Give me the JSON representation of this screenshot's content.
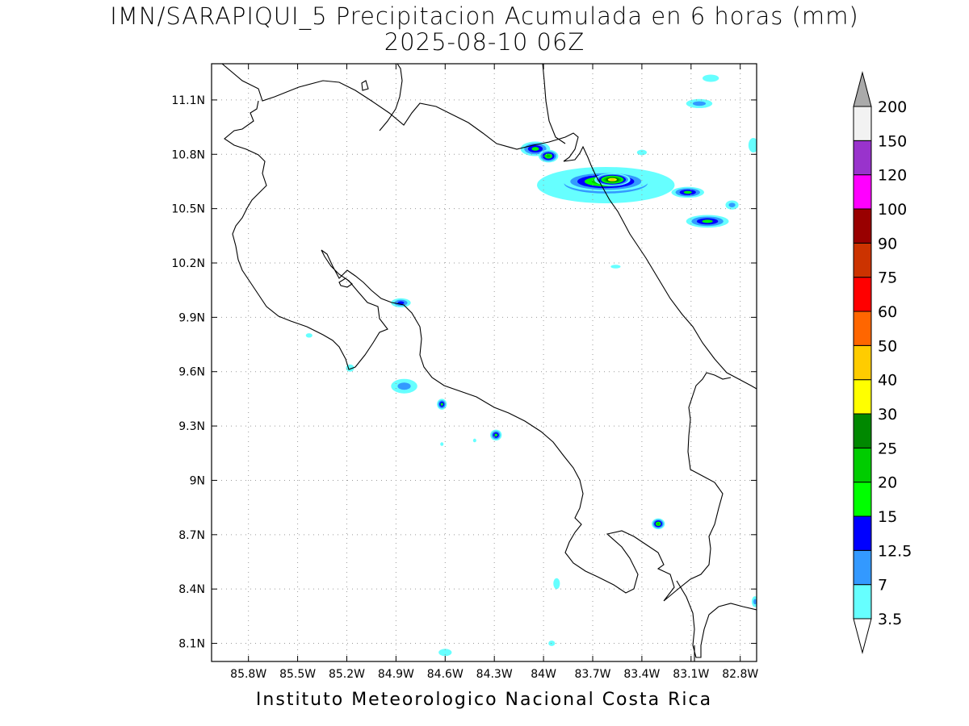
{
  "title": {
    "line1": "IMN/SARAPIQUI_5 Precipitacion Acumulada en 6 horas (mm)",
    "line2": "2025-08-10 06Z"
  },
  "footer": "Instituto Meteorologico Nacional Costa Rica",
  "map": {
    "lon_range": [
      -86.025,
      -82.7
    ],
    "lat_range": [
      8.0,
      11.3
    ],
    "lat_ticks": [
      "8.1N",
      "8.4N",
      "8.7N",
      "9N",
      "9.3N",
      "9.6N",
      "9.9N",
      "10.2N",
      "10.5N",
      "10.8N",
      "11.1N"
    ],
    "lat_values": [
      8.1,
      8.4,
      8.7,
      9.0,
      9.3,
      9.6,
      9.9,
      10.2,
      10.5,
      10.8,
      11.1
    ],
    "lon_ticks": [
      "85.8W",
      "85.5W",
      "85.2W",
      "84.9W",
      "84.6W",
      "84.3W",
      "84W",
      "83.7W",
      "83.4W",
      "83.1W",
      "82.8W"
    ],
    "lon_values": [
      -85.8,
      -85.5,
      -85.2,
      -84.9,
      -84.6,
      -84.3,
      -84.0,
      -83.7,
      -83.4,
      -83.1,
      -82.8
    ],
    "grid": true
  },
  "colorbar": {
    "labels": [
      "3.5",
      "7",
      "12.5",
      "15",
      "20",
      "25",
      "30",
      "40",
      "50",
      "60",
      "75",
      "90",
      "100",
      "120",
      "150",
      "200"
    ],
    "colors": [
      "#66ffff",
      "#3399ff",
      "#0000ff",
      "#00ff00",
      "#00cc00",
      "#008800",
      "#ffff00",
      "#ffcc00",
      "#ff6600",
      "#ff0000",
      "#cc3300",
      "#990000",
      "#ff00ff",
      "#9933cc",
      "#f2f2f2",
      "#aaaaaa"
    ],
    "low_end_color": "#ffffff",
    "high_end_color": "#aaaaaa"
  },
  "precip_cells": [
    {
      "lon": -84.05,
      "lat": 10.83,
      "rx": 0.09,
      "ry": 0.04,
      "level": 3
    },
    {
      "lon": -83.97,
      "lat": 10.79,
      "rx": 0.06,
      "ry": 0.035,
      "level": 4
    },
    {
      "lon": -83.62,
      "lat": 10.63,
      "rx": 0.42,
      "ry": 0.1,
      "level": 1
    },
    {
      "lon": -83.62,
      "lat": 10.64,
      "rx": 0.34,
      "ry": 0.075,
      "level": 3
    },
    {
      "lon": -83.62,
      "lat": 10.65,
      "rx": 0.26,
      "ry": 0.055,
      "level": 5
    },
    {
      "lon": -83.58,
      "lat": 10.66,
      "rx": 0.11,
      "ry": 0.035,
      "level": 7
    },
    {
      "lon": -83.12,
      "lat": 10.59,
      "rx": 0.1,
      "ry": 0.03,
      "level": 3
    },
    {
      "lon": -83.0,
      "lat": 10.43,
      "rx": 0.13,
      "ry": 0.035,
      "level": 3
    },
    {
      "lon": -82.85,
      "lat": 10.52,
      "rx": 0.04,
      "ry": 0.025,
      "level": 1
    },
    {
      "lon": -83.4,
      "lat": 10.81,
      "rx": 0.03,
      "ry": 0.015,
      "level": 0
    },
    {
      "lon": -83.05,
      "lat": 11.08,
      "rx": 0.08,
      "ry": 0.025,
      "level": 1
    },
    {
      "lon": -82.98,
      "lat": 11.22,
      "rx": 0.05,
      "ry": 0.02,
      "level": 0
    },
    {
      "lon": -84.87,
      "lat": 9.98,
      "rx": 0.06,
      "ry": 0.025,
      "level": 2
    },
    {
      "lon": -84.85,
      "lat": 9.52,
      "rx": 0.08,
      "ry": 0.04,
      "level": 1
    },
    {
      "lon": -84.62,
      "lat": 9.42,
      "rx": 0.03,
      "ry": 0.03,
      "level": 3
    },
    {
      "lon": -84.29,
      "lat": 9.25,
      "rx": 0.035,
      "ry": 0.03,
      "level": 3
    },
    {
      "lon": -83.3,
      "lat": 8.76,
      "rx": 0.04,
      "ry": 0.03,
      "level": 4
    },
    {
      "lon": -84.6,
      "lat": 8.05,
      "rx": 0.04,
      "ry": 0.02,
      "level": 0
    },
    {
      "lon": -83.95,
      "lat": 8.1,
      "rx": 0.02,
      "ry": 0.015,
      "level": 0
    },
    {
      "lon": -85.18,
      "lat": 9.62,
      "rx": 0.025,
      "ry": 0.02,
      "level": 0
    },
    {
      "lon": -85.43,
      "lat": 9.8,
      "rx": 0.02,
      "ry": 0.012,
      "level": 0
    },
    {
      "lon": -82.72,
      "lat": 10.85,
      "rx": 0.03,
      "ry": 0.04,
      "level": 0
    },
    {
      "lon": -82.71,
      "lat": 8.33,
      "rx": 0.02,
      "ry": 0.03,
      "level": 1
    },
    {
      "lon": -83.56,
      "lat": 10.18,
      "rx": 0.03,
      "ry": 0.01,
      "level": 0
    },
    {
      "lon": -84.62,
      "lat": 9.2,
      "rx": 0.01,
      "ry": 0.01,
      "level": 0
    },
    {
      "lon": -84.42,
      "lat": 9.22,
      "rx": 0.01,
      "ry": 0.01,
      "level": 0
    },
    {
      "lon": -83.92,
      "lat": 8.43,
      "rx": 0.02,
      "ry": 0.03,
      "level": 0
    }
  ]
}
